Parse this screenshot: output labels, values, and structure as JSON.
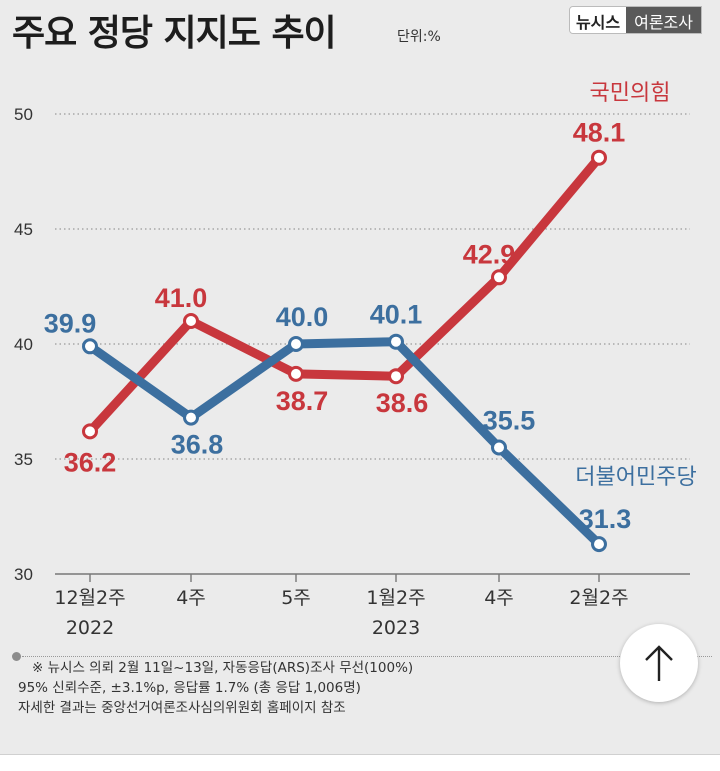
{
  "header": {
    "title": "주요 정당 지지도 추이",
    "unit": "단위:%",
    "badge_left": "뉴시스",
    "badge_right": "여론조사"
  },
  "chart_data": {
    "type": "line",
    "categories": [
      "12월2주\n2022",
      "4주",
      "5주",
      "1월2주\n2023",
      "4주",
      "2월2주"
    ],
    "yticks": [
      30,
      35,
      40,
      45,
      50
    ],
    "ylim": [
      30,
      50
    ],
    "grid": true,
    "series": [
      {
        "name": "국민의힘",
        "color": "#c8373d",
        "values": [
          36.2,
          41.0,
          38.7,
          38.6,
          42.9,
          48.1
        ]
      },
      {
        "name": "더불어민주당",
        "color": "#3c6f9f",
        "values": [
          39.9,
          36.8,
          40.0,
          40.1,
          35.5,
          31.3
        ]
      }
    ]
  },
  "footnote": {
    "line1": "※ 뉴시스 의뢰 2월 11일~13일, 자동응답(ARS)조사 무선(100%)",
    "line2": "95% 신뢰수준, ±3.1%p, 응답률 1.7% (총 응답 1,006명)",
    "line3": "자세한 결과는 중앙선거여론조사심의위원회 홈페이지 참조"
  },
  "scroll_top_icon": "arrow-up-icon"
}
